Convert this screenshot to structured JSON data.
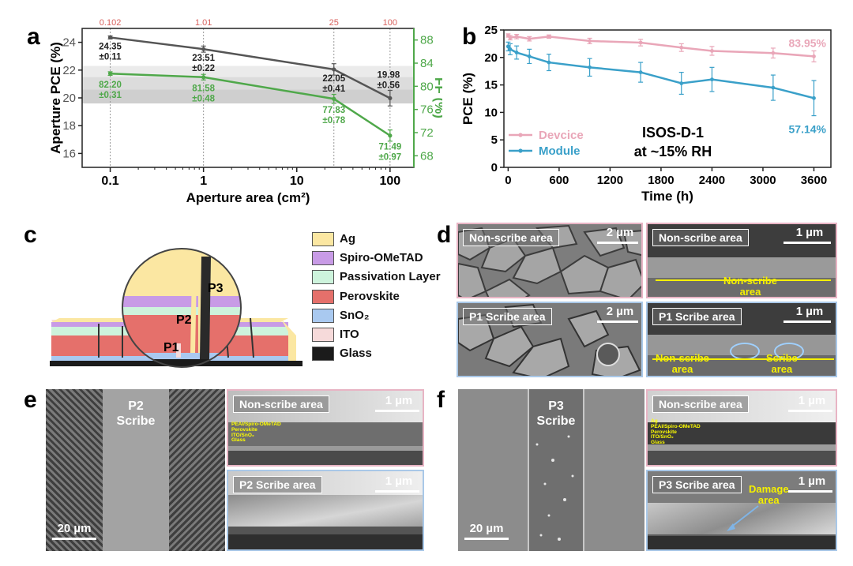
{
  "panels": {
    "a": "a",
    "b": "b",
    "c": "c",
    "d": "d",
    "e": "e",
    "f": "f"
  },
  "chart_data": [
    {
      "type": "line",
      "panel": "a",
      "xlabel": "Aperture area (cm²)",
      "xscale": "log",
      "xlim": [
        0.05,
        180
      ],
      "xticks": [
        "0.1",
        "1",
        "10",
        "100"
      ],
      "ylabel_left": "Aperture PCE (%)",
      "ylabel_right": "FF (%)",
      "ylim_left": [
        15,
        25
      ],
      "ylim_right": [
        66,
        90
      ],
      "yticks_left": [
        "16",
        "18",
        "20",
        "22",
        "24"
      ],
      "yticks_right": [
        "68",
        "72",
        "76",
        "80",
        "84",
        "88"
      ],
      "top_labels": [
        "0.102",
        "1.01",
        "25",
        "100"
      ],
      "x": [
        0.1,
        1,
        25,
        100
      ],
      "series": [
        {
          "axis": "left",
          "color": "#555555",
          "values": [
            24.35,
            23.51,
            22.05,
            19.98
          ],
          "errors": [
            0.11,
            0.22,
            0.41,
            0.56
          ],
          "labels": [
            [
              "24.35",
              "±0.11"
            ],
            [
              "23.51",
              "±0.22"
            ],
            [
              "22.05",
              "±0.41"
            ],
            [
              "19.98",
              "±0.56"
            ]
          ]
        },
        {
          "axis": "right",
          "color": "#4fa84a",
          "values": [
            82.2,
            81.58,
            77.83,
            71.49
          ],
          "errors": [
            0.31,
            0.48,
            0.78,
            0.97
          ],
          "labels": [
            [
              "82.20",
              "±0.31"
            ],
            [
              "81.58",
              "±0.48"
            ],
            [
              "77.83",
              "±0.78"
            ],
            [
              "71.49",
              "±0.97"
            ]
          ]
        }
      ]
    },
    {
      "type": "line",
      "panel": "b",
      "xlabel": "Time (h)",
      "ylabel": "PCE (%)",
      "xlim": [
        -50,
        3800
      ],
      "ylim": [
        0,
        25
      ],
      "xticks": [
        "0",
        "600",
        "1200",
        "1800",
        "2400",
        "3000",
        "3600"
      ],
      "yticks": [
        "0",
        "5",
        "10",
        "15",
        "20",
        "25"
      ],
      "annotation": [
        "ISOS-D-1",
        "at ~15% RH"
      ],
      "series": [
        {
          "name": "Devcice",
          "color": "#e9a6b8",
          "x": [
            0,
            24,
            100,
            250,
            480,
            960,
            1560,
            2040,
            2400,
            3120,
            3600
          ],
          "values": [
            24.0,
            23.6,
            23.8,
            23.4,
            23.8,
            23.0,
            22.7,
            21.8,
            21.2,
            20.8,
            20.2
          ],
          "errors": [
            0.3,
            0.4,
            0.4,
            0.4,
            0.3,
            0.5,
            0.6,
            0.7,
            0.8,
            0.9,
            1.0
          ],
          "end_label": "83.95%"
        },
        {
          "name": "Module",
          "color": "#3aa0c9",
          "x": [
            0,
            24,
            100,
            250,
            480,
            960,
            1560,
            2040,
            2400,
            3120,
            3600
          ],
          "values": [
            22.0,
            21.5,
            20.9,
            20.2,
            19.1,
            18.2,
            17.3,
            15.3,
            16.0,
            14.5,
            12.6
          ],
          "errors": [
            0.8,
            1.0,
            1.2,
            1.3,
            1.5,
            1.6,
            1.8,
            2.0,
            2.2,
            2.3,
            3.2
          ],
          "end_label": "57.14%"
        }
      ]
    }
  ],
  "panel_c": {
    "legend": [
      {
        "label": "Ag",
        "color": "#fbe7a2"
      },
      {
        "label": "Spiro-OMeTAD",
        "color": "#c89be6"
      },
      {
        "label": "Passivation Layer",
        "color": "#cdf3dc"
      },
      {
        "label": "Perovskite",
        "color": "#e5706b"
      },
      {
        "label": "SnO₂",
        "color": "#a9c9f0"
      },
      {
        "label": "ITO",
        "color": "#f6dada"
      },
      {
        "label": "Glass",
        "color": "#1b1b1b"
      }
    ],
    "scribe_labels": [
      "P1",
      "P2",
      "P3"
    ]
  },
  "panel_d": {
    "images": [
      {
        "label": "Non-scribe area",
        "scale": "2 µm",
        "border": "#e8b4c4"
      },
      {
        "label": "Non-scribe area",
        "scale": "1 µm",
        "border": "#e8b4c4",
        "overlay": [
          "Non-scribe",
          "area"
        ]
      },
      {
        "label": "P1 Scribe area",
        "scale": "2 µm",
        "border": "#a9c8e8"
      },
      {
        "label": "P1 Scribe area",
        "scale": "1 µm",
        "border": "#a9c8e8",
        "overlay_left": [
          "Non-scribe",
          "area"
        ],
        "overlay_right": [
          "Scribe",
          "area"
        ]
      }
    ]
  },
  "panel_e": {
    "overview_label": [
      "P2",
      "Scribe"
    ],
    "overview_scale": "20 µm",
    "top_label": "Non-scribe area",
    "top_scale": "1 µm",
    "layers": [
      "PEAI/Spiro-OMeTAD",
      "Perovskite",
      "ITO/SnO₂",
      "Glass"
    ],
    "bottom_label": "P2 Scribe area",
    "bottom_scale": "1 µm"
  },
  "panel_f": {
    "overview_label": [
      "P3",
      "Scribe"
    ],
    "overview_scale": "20 µm",
    "top_label": "Non-scribe area",
    "top_scale": "1 µm",
    "layers": [
      "Ag",
      "PEAI/Spiro-OMeTAD",
      "Perovskite",
      "ITO/SnO₂",
      "Glass"
    ],
    "bottom_label": "P3 Scribe area",
    "bottom_scale": "1 µm",
    "damage_label": [
      "Damage",
      "area"
    ]
  }
}
